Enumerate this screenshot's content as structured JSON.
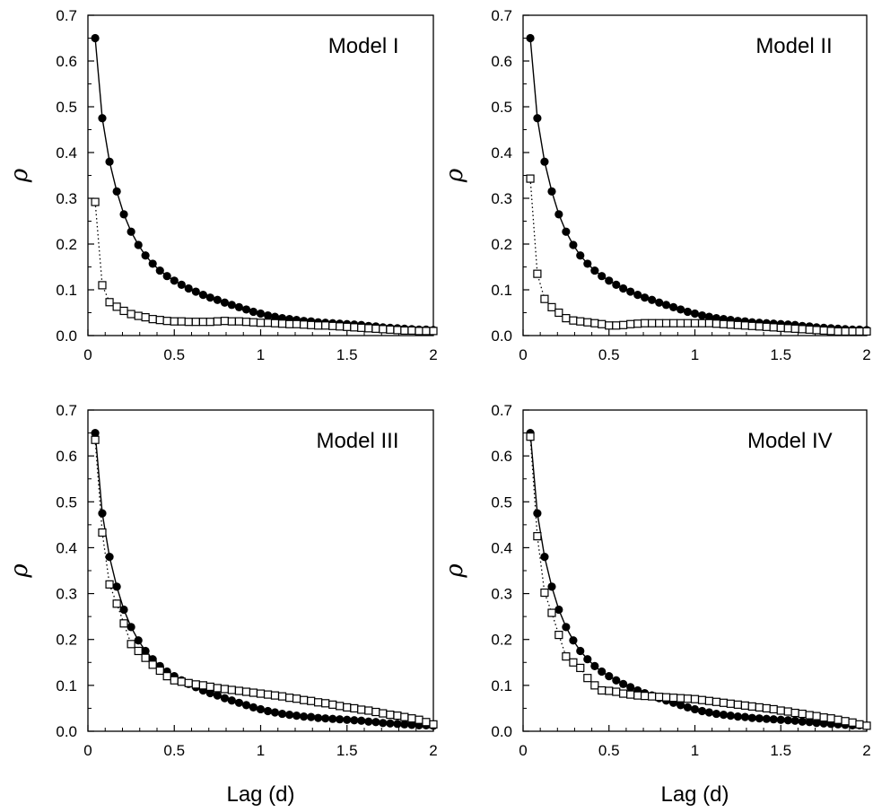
{
  "chart_data": [
    {
      "type": "scatter",
      "title": "Model I",
      "xlabel": "",
      "ylabel": "ρ",
      "xlim": [
        0,
        2
      ],
      "ylim": [
        0,
        0.7
      ],
      "xticks": [
        "0",
        "0.5",
        "1",
        "1.5",
        "2"
      ],
      "yticks": [
        "0.0",
        "0.1",
        "0.2",
        "0.3",
        "0.4",
        "0.5",
        "0.6",
        "0.7"
      ],
      "grid": false,
      "series": [
        {
          "marker": "filled-circle",
          "line": "solid",
          "x": [
            0.042,
            0.083,
            0.125,
            0.167,
            0.208,
            0.25,
            0.292,
            0.333,
            0.375,
            0.417,
            0.458,
            0.5,
            0.542,
            0.583,
            0.625,
            0.667,
            0.708,
            0.75,
            0.792,
            0.833,
            0.875,
            0.917,
            0.958,
            1.0,
            1.042,
            1.083,
            1.125,
            1.167,
            1.208,
            1.25,
            1.292,
            1.333,
            1.375,
            1.417,
            1.458,
            1.5,
            1.542,
            1.583,
            1.625,
            1.667,
            1.708,
            1.75,
            1.792,
            1.833,
            1.875,
            1.917,
            1.958,
            2.0
          ],
          "y": [
            0.65,
            0.475,
            0.38,
            0.315,
            0.265,
            0.227,
            0.198,
            0.175,
            0.157,
            0.142,
            0.13,
            0.12,
            0.111,
            0.103,
            0.096,
            0.089,
            0.083,
            0.078,
            0.072,
            0.067,
            0.062,
            0.057,
            0.052,
            0.048,
            0.044,
            0.041,
            0.038,
            0.036,
            0.034,
            0.032,
            0.031,
            0.029,
            0.028,
            0.027,
            0.026,
            0.025,
            0.024,
            0.023,
            0.021,
            0.02,
            0.018,
            0.017,
            0.016,
            0.015,
            0.014,
            0.013,
            0.013,
            0.012
          ]
        },
        {
          "marker": "open-square",
          "line": "dotted",
          "x": [
            0.042,
            0.083,
            0.125,
            0.167,
            0.208,
            0.25,
            0.292,
            0.333,
            0.375,
            0.417,
            0.458,
            0.5,
            0.542,
            0.583,
            0.625,
            0.667,
            0.708,
            0.75,
            0.792,
            0.833,
            0.875,
            0.917,
            0.958,
            1.0,
            1.042,
            1.083,
            1.125,
            1.167,
            1.208,
            1.25,
            1.292,
            1.333,
            1.375,
            1.417,
            1.458,
            1.5,
            1.542,
            1.583,
            1.625,
            1.667,
            1.708,
            1.75,
            1.792,
            1.833,
            1.875,
            1.917,
            1.958,
            2.0
          ],
          "y": [
            0.292,
            0.11,
            0.073,
            0.063,
            0.054,
            0.047,
            0.043,
            0.04,
            0.036,
            0.034,
            0.032,
            0.031,
            0.031,
            0.03,
            0.03,
            0.03,
            0.03,
            0.031,
            0.032,
            0.031,
            0.031,
            0.03,
            0.029,
            0.028,
            0.028,
            0.027,
            0.026,
            0.025,
            0.025,
            0.024,
            0.023,
            0.022,
            0.022,
            0.021,
            0.02,
            0.019,
            0.018,
            0.017,
            0.016,
            0.015,
            0.014,
            0.013,
            0.012,
            0.011,
            0.011,
            0.01,
            0.01,
            0.01
          ]
        }
      ]
    },
    {
      "type": "scatter",
      "title": "Model II",
      "xlabel": "",
      "ylabel": "ρ",
      "xlim": [
        0,
        2
      ],
      "ylim": [
        0,
        0.7
      ],
      "xticks": [
        "0",
        "0.5",
        "1",
        "1.5",
        "2"
      ],
      "yticks": [
        "0.0",
        "0.1",
        "0.2",
        "0.3",
        "0.4",
        "0.5",
        "0.6",
        "0.7"
      ],
      "grid": false,
      "series": [
        {
          "marker": "filled-circle",
          "line": "solid",
          "x": [
            0.042,
            0.083,
            0.125,
            0.167,
            0.208,
            0.25,
            0.292,
            0.333,
            0.375,
            0.417,
            0.458,
            0.5,
            0.542,
            0.583,
            0.625,
            0.667,
            0.708,
            0.75,
            0.792,
            0.833,
            0.875,
            0.917,
            0.958,
            1.0,
            1.042,
            1.083,
            1.125,
            1.167,
            1.208,
            1.25,
            1.292,
            1.333,
            1.375,
            1.417,
            1.458,
            1.5,
            1.542,
            1.583,
            1.625,
            1.667,
            1.708,
            1.75,
            1.792,
            1.833,
            1.875,
            1.917,
            1.958,
            2.0
          ],
          "y": [
            0.65,
            0.475,
            0.38,
            0.315,
            0.265,
            0.227,
            0.198,
            0.175,
            0.157,
            0.142,
            0.13,
            0.12,
            0.111,
            0.103,
            0.096,
            0.089,
            0.083,
            0.078,
            0.072,
            0.067,
            0.062,
            0.057,
            0.052,
            0.048,
            0.044,
            0.041,
            0.038,
            0.036,
            0.034,
            0.032,
            0.031,
            0.029,
            0.028,
            0.027,
            0.026,
            0.025,
            0.024,
            0.023,
            0.021,
            0.02,
            0.018,
            0.017,
            0.016,
            0.015,
            0.014,
            0.013,
            0.013,
            0.012
          ]
        },
        {
          "marker": "open-square",
          "line": "dotted",
          "x": [
            0.042,
            0.083,
            0.125,
            0.167,
            0.208,
            0.25,
            0.292,
            0.333,
            0.375,
            0.417,
            0.458,
            0.5,
            0.542,
            0.583,
            0.625,
            0.667,
            0.708,
            0.75,
            0.792,
            0.833,
            0.875,
            0.917,
            0.958,
            1.0,
            1.042,
            1.083,
            1.125,
            1.167,
            1.208,
            1.25,
            1.292,
            1.333,
            1.375,
            1.417,
            1.458,
            1.5,
            1.542,
            1.583,
            1.625,
            1.667,
            1.708,
            1.75,
            1.792,
            1.833,
            1.875,
            1.917,
            1.958,
            2.0
          ],
          "y": [
            0.343,
            0.135,
            0.08,
            0.062,
            0.05,
            0.038,
            0.033,
            0.031,
            0.029,
            0.027,
            0.025,
            0.022,
            0.022,
            0.023,
            0.025,
            0.026,
            0.027,
            0.027,
            0.027,
            0.027,
            0.027,
            0.027,
            0.027,
            0.027,
            0.027,
            0.027,
            0.026,
            0.025,
            0.024,
            0.023,
            0.022,
            0.021,
            0.02,
            0.019,
            0.018,
            0.017,
            0.016,
            0.015,
            0.014,
            0.013,
            0.012,
            0.011,
            0.01,
            0.009,
            0.009,
            0.009,
            0.009,
            0.009
          ]
        }
      ]
    },
    {
      "type": "scatter",
      "title": "Model III",
      "xlabel": "Lag (d)",
      "ylabel": "ρ",
      "xlim": [
        0,
        2
      ],
      "ylim": [
        0,
        0.7
      ],
      "xticks": [
        "0",
        "0.5",
        "1",
        "1.5",
        "2"
      ],
      "yticks": [
        "0.0",
        "0.1",
        "0.2",
        "0.3",
        "0.4",
        "0.5",
        "0.6",
        "0.7"
      ],
      "grid": false,
      "series": [
        {
          "marker": "filled-circle",
          "line": "solid",
          "x": [
            0.042,
            0.083,
            0.125,
            0.167,
            0.208,
            0.25,
            0.292,
            0.333,
            0.375,
            0.417,
            0.458,
            0.5,
            0.542,
            0.583,
            0.625,
            0.667,
            0.708,
            0.75,
            0.792,
            0.833,
            0.875,
            0.917,
            0.958,
            1.0,
            1.042,
            1.083,
            1.125,
            1.167,
            1.208,
            1.25,
            1.292,
            1.333,
            1.375,
            1.417,
            1.458,
            1.5,
            1.542,
            1.583,
            1.625,
            1.667,
            1.708,
            1.75,
            1.792,
            1.833,
            1.875,
            1.917,
            1.958,
            2.0
          ],
          "y": [
            0.65,
            0.475,
            0.38,
            0.315,
            0.265,
            0.227,
            0.198,
            0.175,
            0.157,
            0.142,
            0.13,
            0.12,
            0.111,
            0.103,
            0.096,
            0.089,
            0.083,
            0.078,
            0.072,
            0.067,
            0.062,
            0.057,
            0.052,
            0.048,
            0.044,
            0.041,
            0.038,
            0.036,
            0.034,
            0.032,
            0.031,
            0.029,
            0.028,
            0.027,
            0.026,
            0.025,
            0.024,
            0.023,
            0.021,
            0.02,
            0.018,
            0.017,
            0.016,
            0.015,
            0.014,
            0.013,
            0.013,
            0.012
          ]
        },
        {
          "marker": "open-square",
          "line": "dotted",
          "x": [
            0.042,
            0.083,
            0.125,
            0.167,
            0.208,
            0.25,
            0.292,
            0.333,
            0.375,
            0.417,
            0.458,
            0.5,
            0.542,
            0.583,
            0.625,
            0.667,
            0.708,
            0.75,
            0.792,
            0.833,
            0.875,
            0.917,
            0.958,
            1.0,
            1.042,
            1.083,
            1.125,
            1.167,
            1.208,
            1.25,
            1.292,
            1.333,
            1.375,
            1.417,
            1.458,
            1.5,
            1.542,
            1.583,
            1.625,
            1.667,
            1.708,
            1.75,
            1.792,
            1.833,
            1.875,
            1.917,
            1.958,
            2.0
          ],
          "y": [
            0.635,
            0.433,
            0.32,
            0.278,
            0.235,
            0.19,
            0.175,
            0.16,
            0.145,
            0.132,
            0.12,
            0.111,
            0.108,
            0.105,
            0.102,
            0.1,
            0.097,
            0.094,
            0.092,
            0.09,
            0.088,
            0.086,
            0.084,
            0.082,
            0.08,
            0.078,
            0.076,
            0.073,
            0.071,
            0.068,
            0.066,
            0.063,
            0.061,
            0.058,
            0.055,
            0.052,
            0.05,
            0.047,
            0.045,
            0.042,
            0.039,
            0.036,
            0.034,
            0.031,
            0.028,
            0.025,
            0.02,
            0.015
          ]
        }
      ]
    },
    {
      "type": "scatter",
      "title": "Model IV",
      "xlabel": "Lag (d)",
      "ylabel": "ρ",
      "xlim": [
        0,
        2
      ],
      "ylim": [
        0,
        0.7
      ],
      "xticks": [
        "0",
        "0.5",
        "1",
        "1.5",
        "2"
      ],
      "yticks": [
        "0.0",
        "0.1",
        "0.2",
        "0.3",
        "0.4",
        "0.5",
        "0.6",
        "0.7"
      ],
      "grid": false,
      "series": [
        {
          "marker": "filled-circle",
          "line": "solid",
          "x": [
            0.042,
            0.083,
            0.125,
            0.167,
            0.208,
            0.25,
            0.292,
            0.333,
            0.375,
            0.417,
            0.458,
            0.5,
            0.542,
            0.583,
            0.625,
            0.667,
            0.708,
            0.75,
            0.792,
            0.833,
            0.875,
            0.917,
            0.958,
            1.0,
            1.042,
            1.083,
            1.125,
            1.167,
            1.208,
            1.25,
            1.292,
            1.333,
            1.375,
            1.417,
            1.458,
            1.5,
            1.542,
            1.583,
            1.625,
            1.667,
            1.708,
            1.75,
            1.792,
            1.833,
            1.875,
            1.917,
            1.958,
            2.0
          ],
          "y": [
            0.65,
            0.475,
            0.38,
            0.315,
            0.265,
            0.227,
            0.198,
            0.175,
            0.157,
            0.142,
            0.13,
            0.12,
            0.111,
            0.103,
            0.096,
            0.089,
            0.083,
            0.078,
            0.072,
            0.067,
            0.062,
            0.057,
            0.052,
            0.048,
            0.044,
            0.041,
            0.038,
            0.036,
            0.034,
            0.032,
            0.031,
            0.029,
            0.028,
            0.027,
            0.026,
            0.025,
            0.024,
            0.023,
            0.021,
            0.02,
            0.018,
            0.017,
            0.016,
            0.015,
            0.014,
            0.013,
            0.013,
            0.012
          ]
        },
        {
          "marker": "open-square",
          "line": "dotted",
          "x": [
            0.042,
            0.083,
            0.125,
            0.167,
            0.208,
            0.25,
            0.292,
            0.333,
            0.375,
            0.417,
            0.458,
            0.5,
            0.542,
            0.583,
            0.625,
            0.667,
            0.708,
            0.75,
            0.792,
            0.833,
            0.875,
            0.917,
            0.958,
            1.0,
            1.042,
            1.083,
            1.125,
            1.167,
            1.208,
            1.25,
            1.292,
            1.333,
            1.375,
            1.417,
            1.458,
            1.5,
            1.542,
            1.583,
            1.625,
            1.667,
            1.708,
            1.75,
            1.792,
            1.833,
            1.875,
            1.917,
            1.958,
            2.0
          ],
          "y": [
            0.642,
            0.425,
            0.302,
            0.258,
            0.21,
            0.163,
            0.15,
            0.138,
            0.116,
            0.1,
            0.089,
            0.088,
            0.086,
            0.082,
            0.08,
            0.078,
            0.077,
            0.076,
            0.075,
            0.074,
            0.073,
            0.072,
            0.071,
            0.07,
            0.068,
            0.066,
            0.064,
            0.062,
            0.06,
            0.058,
            0.056,
            0.054,
            0.052,
            0.05,
            0.048,
            0.045,
            0.043,
            0.04,
            0.038,
            0.035,
            0.033,
            0.03,
            0.028,
            0.025,
            0.022,
            0.019,
            0.015,
            0.012
          ]
        }
      ]
    }
  ]
}
